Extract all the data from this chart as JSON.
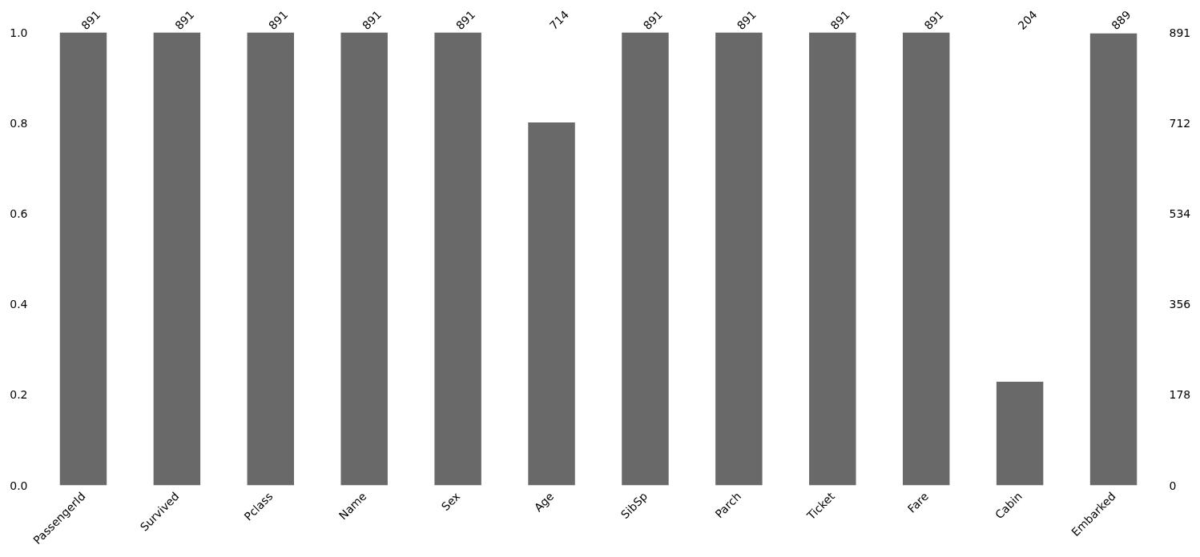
{
  "chart_data": {
    "type": "bar",
    "categories": [
      "PassengerId",
      "Survived",
      "Pclass",
      "Name",
      "Sex",
      "Age",
      "SibSp",
      "Parch",
      "Ticket",
      "Fare",
      "Cabin",
      "Embarked"
    ],
    "series": [
      {
        "color": "#696969",
        "axis": "y2",
        "values": [
          891,
          891,
          891,
          891,
          891,
          714,
          891,
          891,
          891,
          891,
          204,
          889
        ]
      }
    ],
    "ylim": [
      0,
      1
    ],
    "yticks": [
      {
        "value": 0,
        "label": "0.0"
      },
      0.2,
      0.4,
      0.6,
      0.8,
      {
        "value": 1,
        "label": "1.0"
      }
    ],
    "y2lim": [
      0,
      891
    ],
    "y2ticks": [
      0,
      178,
      356,
      534,
      712,
      891
    ],
    "annotations": [
      "891",
      "891",
      "891",
      "891",
      "891",
      "714",
      "891",
      "891",
      "891",
      "891",
      "204",
      "889"
    ],
    "grid": false
  }
}
